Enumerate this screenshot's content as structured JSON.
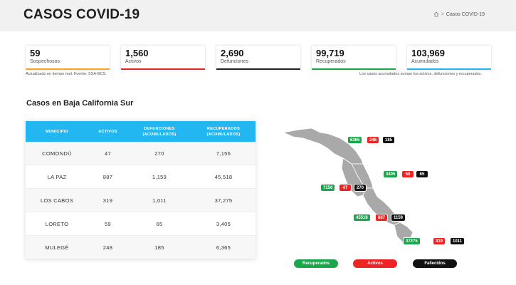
{
  "header": {
    "title": "CASOS COVID-19",
    "breadcrumb": {
      "separator": ">",
      "current": "Casos COVID-19"
    }
  },
  "stats": [
    {
      "value": "59",
      "label": "Sospechosos",
      "color": "#f5a623"
    },
    {
      "value": "1,560",
      "label": "Activos",
      "color": "#e22a2a"
    },
    {
      "value": "2,690",
      "label": "Defunciones",
      "color": "#222222"
    },
    {
      "value": "99,719",
      "label": "Recuperados",
      "color": "#1aa64a"
    },
    {
      "value": "103,969",
      "label": "Acumulados",
      "color": "#22b7f0"
    }
  ],
  "notes": {
    "left": "Actualizado en tiempo real. Fuente: SSA-BCS.",
    "right": "Los casos acumulados suman los activos, defunciones y recuperados."
  },
  "section_title": "Casos en Baja California Sur",
  "table": {
    "headers": {
      "municipio": "MUNICIPIO",
      "activos": "ACTIVOS",
      "defunciones_1": "DEFUNCIONES",
      "defunciones_2": "(ACUMULADOS)",
      "recuperados_1": "RECUPERADOS",
      "recuperados_2": "(ACUMULADOS)"
    },
    "rows": [
      {
        "municipio": "COMONDÚ",
        "activos": "47",
        "defunciones": "270",
        "recuperados": "7,156"
      },
      {
        "municipio": "LA PAZ",
        "activos": "887",
        "defunciones": "1,159",
        "recuperados": "45,518"
      },
      {
        "municipio": "LOS CABOS",
        "activos": "319",
        "defunciones": "1,011",
        "recuperados": "37,275"
      },
      {
        "municipio": "LORETO",
        "activos": "59",
        "defunciones": "65",
        "recuperados": "3,405"
      },
      {
        "municipio": "MULEGÉ",
        "activos": "248",
        "defunciones": "185",
        "recuperados": "6,365"
      }
    ]
  },
  "map": {
    "mulege": {
      "recuperados": "6365",
      "activos": "248",
      "fallecidos": "185"
    },
    "loreto": {
      "recuperados": "3405",
      "activos": "59",
      "fallecidos": "65"
    },
    "comondu": {
      "recuperados": "7156",
      "activos": "47",
      "fallecidos": "270"
    },
    "lapaz": {
      "recuperados": "45518",
      "activos": "887",
      "fallecidos": "1159"
    },
    "loscabos": {
      "recuperados": "37275",
      "activos": "319",
      "fallecidos": "1011"
    }
  },
  "legend": {
    "recuperados": "Recuperados",
    "activos": "Activos",
    "fallecidos": "Fallecidos"
  },
  "colors": {
    "green": "#1aa64a",
    "red": "#ee2323",
    "black": "#111111",
    "blue": "#22b7f0",
    "map_fill": "#a9a9a9"
  }
}
